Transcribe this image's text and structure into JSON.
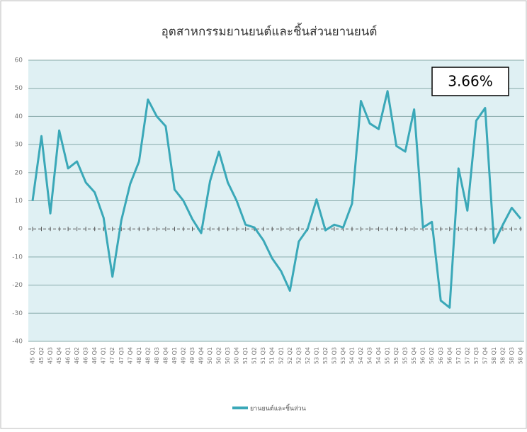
{
  "chart_data": {
    "type": "line",
    "title": "อุตสาหกรรมยานยนต์และชิ้นส่วนยานยนต์",
    "annotation": "3.66%",
    "categories": [
      "45 Q1",
      "45 Q2",
      "45 Q3",
      "45 Q4",
      "46 Q1",
      "46 Q2",
      "46 Q3",
      "46 Q4",
      "47 Q1",
      "47 Q2",
      "47 Q3",
      "47 Q4",
      "48 Q1",
      "48 Q2",
      "48 Q3",
      "48 Q4",
      "49 Q1",
      "49 Q2",
      "49 Q3",
      "49 Q4",
      "50 Q1",
      "50 Q2",
      "50 Q3",
      "50 Q4",
      "51 Q1",
      "51 Q2",
      "51 Q3",
      "51 Q4",
      "52 Q1",
      "52 Q2",
      "52 Q3",
      "52 Q4",
      "53 Q1",
      "53 Q2",
      "53 Q3",
      "53 Q4",
      "54 Q1",
      "54 Q2",
      "54 Q3",
      "54 Q4",
      "55 Q1",
      "55 Q2",
      "55 Q3",
      "55 Q4",
      "56 Q1",
      "56 Q2",
      "56 Q3",
      "56 Q4",
      "57 Q1",
      "57 Q2",
      "57 Q3",
      "57 Q4",
      "58 Q1",
      "58 Q2",
      "58 Q3",
      "58 Q4"
    ],
    "series": [
      {
        "name": "ยานยนต์และชิ้นส่วน",
        "color": "#3aa8b8",
        "values": [
          10,
          33,
          5.5,
          35,
          21.5,
          24,
          16.5,
          13,
          4,
          -17,
          3,
          16,
          24,
          46,
          40,
          36.5,
          14,
          10,
          3.5,
          -1.5,
          17,
          27.5,
          16.5,
          10,
          1.5,
          0.5,
          -4,
          -10.5,
          -15,
          -22,
          -4.5,
          0,
          10.5,
          -0.5,
          1.5,
          0.5,
          9,
          45.5,
          37.5,
          35.5,
          49,
          29.5,
          27.5,
          42.5,
          0.5,
          2.5,
          -25.5,
          -28,
          21.5,
          6.5,
          38.5,
          43,
          -5,
          1.5,
          7.5,
          3.66
        ]
      }
    ],
    "ylim": [
      -40,
      60
    ],
    "yticks": [
      -40,
      -30,
      -20,
      -10,
      0,
      10,
      20,
      30,
      40,
      50,
      60
    ],
    "grid": true,
    "background": "#dff0f3"
  }
}
